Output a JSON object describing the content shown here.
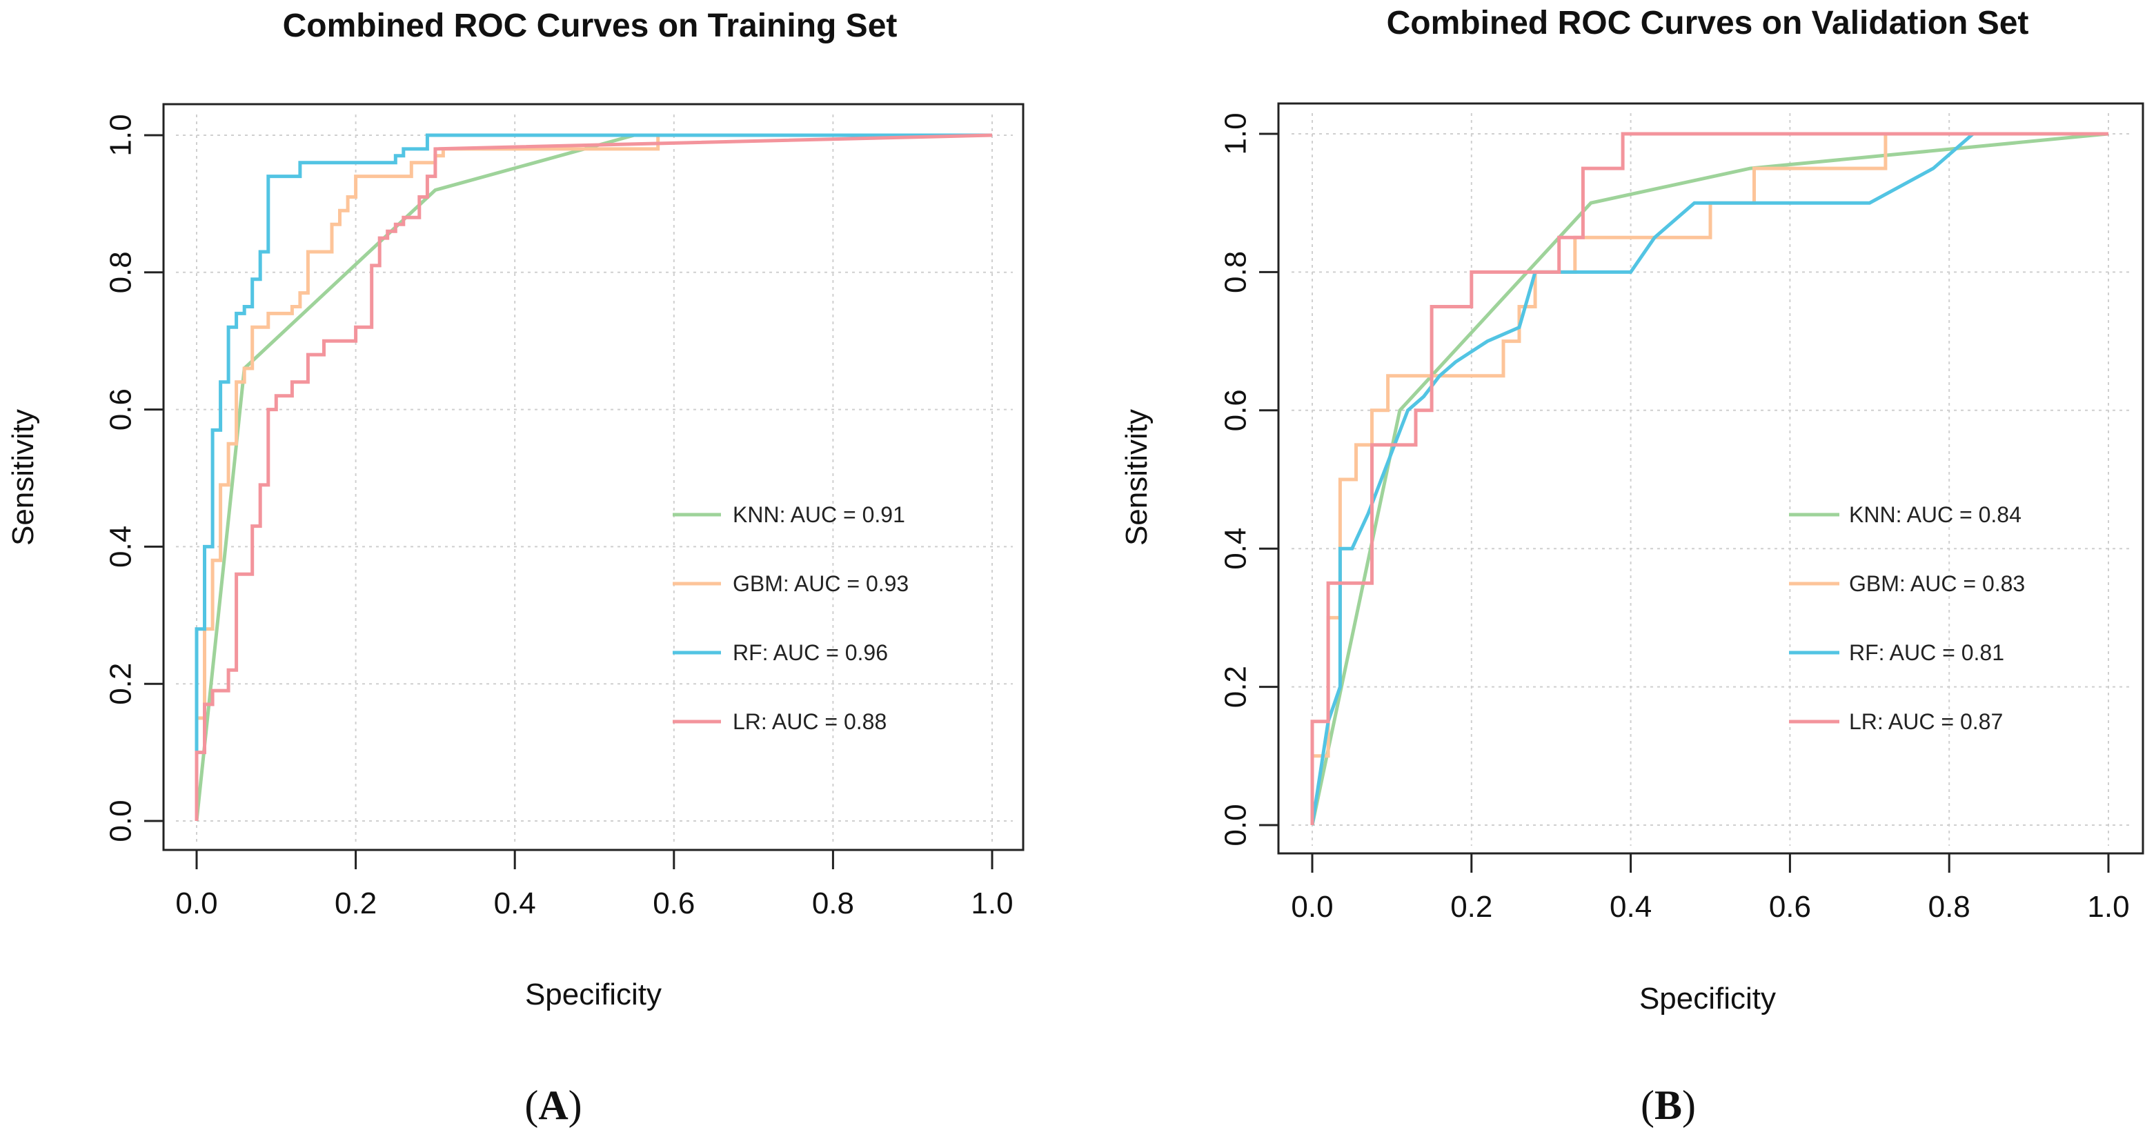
{
  "chart_data": [
    {
      "type": "line",
      "panel_label": "A",
      "title": "Combined ROC Curves on Training Set",
      "xlabel": "Specificity",
      "ylabel": "Sensitivity",
      "xlim": [
        0,
        1
      ],
      "ylim": [
        0,
        1
      ],
      "xticks": [
        "0.0",
        "0.2",
        "0.4",
        "0.6",
        "0.8",
        "1.0"
      ],
      "yticks": [
        "0.0",
        "0.2",
        "0.4",
        "0.6",
        "0.8",
        "1.0"
      ],
      "grid": true,
      "legend_position": "right-center",
      "series": [
        {
          "name": "KNN",
          "legend": "KNN: AUC = 0.91",
          "color": "#9ed39a",
          "x": [
            0,
            0.06,
            0.3,
            0.55,
            1.0
          ],
          "y": [
            0,
            0.66,
            0.92,
            1.0,
            1.0
          ]
        },
        {
          "name": "GBM",
          "legend": "GBM: AUC = 0.93",
          "color": "#fdc499",
          "x": [
            0,
            0,
            0.01,
            0.01,
            0.02,
            0.02,
            0.03,
            0.03,
            0.04,
            0.04,
            0.05,
            0.05,
            0.06,
            0.06,
            0.07,
            0.07,
            0.09,
            0.09,
            0.12,
            0.12,
            0.13,
            0.13,
            0.14,
            0.14,
            0.17,
            0.17,
            0.18,
            0.18,
            0.19,
            0.19,
            0.2,
            0.2,
            0.27,
            0.27,
            0.3,
            0.3,
            0.31,
            0.31,
            0.55,
            0.55,
            0.58,
            0.58,
            1.0
          ],
          "y": [
            0,
            0.15,
            0.15,
            0.28,
            0.28,
            0.38,
            0.38,
            0.49,
            0.49,
            0.55,
            0.55,
            0.64,
            0.64,
            0.66,
            0.66,
            0.72,
            0.72,
            0.74,
            0.74,
            0.75,
            0.75,
            0.77,
            0.77,
            0.83,
            0.83,
            0.87,
            0.87,
            0.89,
            0.89,
            0.91,
            0.91,
            0.94,
            0.94,
            0.96,
            0.96,
            0.97,
            0.97,
            0.98,
            0.98,
            0.98,
            0.98,
            1.0,
            1.0
          ]
        },
        {
          "name": "RF",
          "legend": "RF: AUC = 0.96",
          "color": "#52c4e3",
          "x": [
            0,
            0,
            0.01,
            0.01,
            0.02,
            0.02,
            0.03,
            0.03,
            0.04,
            0.04,
            0.05,
            0.05,
            0.06,
            0.06,
            0.07,
            0.07,
            0.08,
            0.08,
            0.09,
            0.09,
            0.13,
            0.13,
            0.14,
            0.14,
            0.25,
            0.25,
            0.26,
            0.26,
            0.28,
            0.28,
            0.29,
            0.29,
            0.3,
            0.3,
            1.0
          ],
          "y": [
            0,
            0.28,
            0.28,
            0.4,
            0.4,
            0.57,
            0.57,
            0.64,
            0.64,
            0.72,
            0.72,
            0.74,
            0.74,
            0.75,
            0.75,
            0.79,
            0.79,
            0.83,
            0.83,
            0.94,
            0.94,
            0.96,
            0.96,
            0.96,
            0.96,
            0.97,
            0.97,
            0.98,
            0.98,
            0.98,
            0.98,
            1.0,
            1.0,
            1.0,
            1.0
          ]
        },
        {
          "name": "LR",
          "legend": "LR: AUC = 0.88",
          "color": "#f3949c",
          "x": [
            0,
            0,
            0.01,
            0.01,
            0.02,
            0.02,
            0.03,
            0.03,
            0.04,
            0.04,
            0.05,
            0.05,
            0.06,
            0.06,
            0.07,
            0.07,
            0.08,
            0.08,
            0.09,
            0.09,
            0.1,
            0.1,
            0.11,
            0.11,
            0.12,
            0.12,
            0.14,
            0.14,
            0.16,
            0.16,
            0.2,
            0.2,
            0.22,
            0.22,
            0.23,
            0.23,
            0.24,
            0.24,
            0.25,
            0.25,
            0.26,
            0.26,
            0.28,
            0.28,
            0.29,
            0.29,
            0.3,
            0.3,
            1.0
          ],
          "y": [
            0,
            0.1,
            0.1,
            0.17,
            0.17,
            0.19,
            0.19,
            0.19,
            0.19,
            0.22,
            0.22,
            0.36,
            0.36,
            0.36,
            0.36,
            0.43,
            0.43,
            0.49,
            0.49,
            0.6,
            0.6,
            0.62,
            0.62,
            0.62,
            0.62,
            0.64,
            0.64,
            0.68,
            0.68,
            0.7,
            0.7,
            0.72,
            0.72,
            0.81,
            0.81,
            0.85,
            0.85,
            0.86,
            0.86,
            0.87,
            0.87,
            0.88,
            0.88,
            0.91,
            0.91,
            0.94,
            0.94,
            0.98,
            1.0
          ]
        }
      ]
    },
    {
      "type": "line",
      "panel_label": "B",
      "title": "Combined ROC Curves on Validation Set",
      "xlabel": "Specificity",
      "ylabel": "Sensitivity",
      "xlim": [
        0,
        1
      ],
      "ylim": [
        0,
        1
      ],
      "xticks": [
        "0.0",
        "0.2",
        "0.4",
        "0.6",
        "0.8",
        "1.0"
      ],
      "yticks": [
        "0.0",
        "0.2",
        "0.4",
        "0.6",
        "0.8",
        "1.0"
      ],
      "grid": true,
      "legend_position": "right-center",
      "series": [
        {
          "name": "KNN",
          "legend": "KNN: AUC = 0.84",
          "color": "#9ed39a",
          "x": [
            0,
            0.11,
            0.35,
            0.55,
            1.0
          ],
          "y": [
            0,
            0.6,
            0.9,
            0.95,
            1.0
          ]
        },
        {
          "name": "GBM",
          "legend": "GBM: AUC = 0.83",
          "color": "#fdc499",
          "x": [
            0,
            0,
            0.02,
            0.02,
            0.035,
            0.035,
            0.055,
            0.055,
            0.075,
            0.075,
            0.095,
            0.095,
            0.24,
            0.24,
            0.26,
            0.26,
            0.28,
            0.28,
            0.33,
            0.33,
            0.34,
            0.34,
            0.45,
            0.45,
            0.5,
            0.5,
            0.555,
            0.555,
            0.72,
            0.72,
            1.0
          ],
          "y": [
            0,
            0.1,
            0.1,
            0.3,
            0.3,
            0.5,
            0.5,
            0.55,
            0.55,
            0.6,
            0.6,
            0.65,
            0.65,
            0.7,
            0.7,
            0.75,
            0.75,
            0.8,
            0.8,
            0.85,
            0.85,
            0.85,
            0.85,
            0.85,
            0.85,
            0.9,
            0.9,
            0.95,
            0.95,
            1.0,
            1.0
          ]
        },
        {
          "name": "RF",
          "legend": "RF: AUC = 0.81",
          "color": "#52c4e3",
          "x": [
            0,
            0.02,
            0.035,
            0.035,
            0.05,
            0.07,
            0.12,
            0.14,
            0.16,
            0.18,
            0.22,
            0.26,
            0.28,
            0.3,
            0.33,
            0.4,
            0.43,
            0.48,
            0.5,
            0.7,
            0.78,
            0.83,
            1.0
          ],
          "y": [
            0,
            0.15,
            0.2,
            0.4,
            0.4,
            0.45,
            0.6,
            0.62,
            0.65,
            0.67,
            0.7,
            0.72,
            0.8,
            0.8,
            0.8,
            0.8,
            0.85,
            0.9,
            0.9,
            0.9,
            0.95,
            1.0,
            1.0
          ]
        },
        {
          "name": "LR",
          "legend": "LR: AUC = 0.87",
          "color": "#f3949c",
          "x": [
            0,
            0,
            0.02,
            0.02,
            0.075,
            0.075,
            0.13,
            0.13,
            0.15,
            0.15,
            0.2,
            0.2,
            0.31,
            0.31,
            0.34,
            0.34,
            0.39,
            0.39,
            1.0
          ],
          "y": [
            0,
            0.15,
            0.15,
            0.35,
            0.35,
            0.55,
            0.55,
            0.6,
            0.6,
            0.75,
            0.75,
            0.8,
            0.8,
            0.85,
            0.85,
            0.95,
            0.95,
            1.0,
            1.0
          ]
        }
      ]
    }
  ]
}
